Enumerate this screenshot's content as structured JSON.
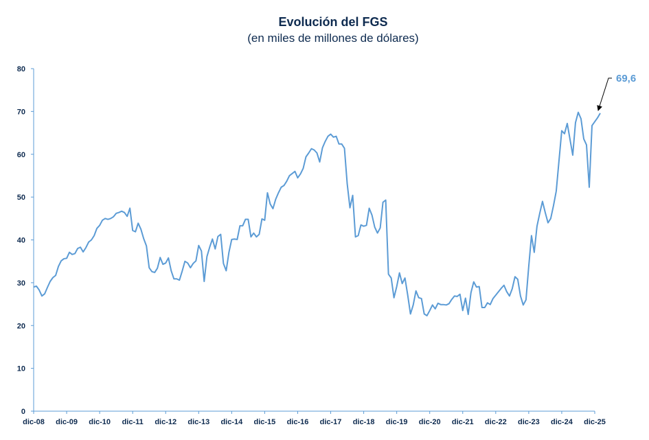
{
  "chart_data": {
    "type": "line",
    "title": "Evolución del FGS",
    "subtitle": "(en miles de millones de dólares)",
    "xlabel": "",
    "ylabel": "",
    "ylim": [
      0,
      80
    ],
    "yticks": [
      "0",
      "10",
      "20",
      "30",
      "40",
      "50",
      "60",
      "70",
      "80"
    ],
    "xticks": [
      "dic-08",
      "dic-09",
      "dic-10",
      "dic-11",
      "dic-12",
      "dic-13",
      "dic-14",
      "dic-15",
      "dic-16",
      "dic-17",
      "dic-18",
      "dic-19",
      "dic-20",
      "dic-21",
      "dic-22",
      "dic-23",
      "dic-24",
      "dic-25"
    ],
    "x_unit": "months since dic-08",
    "grid": false,
    "line_color": "#5b9bd5",
    "series": [
      {
        "values": [
          29.0,
          29.2,
          28.3,
          26.9,
          27.4,
          28.9,
          30.3,
          31.2,
          31.7,
          33.8,
          35.1,
          35.6,
          35.7,
          37.1,
          36.6,
          36.8,
          38.0,
          38.3,
          37.2,
          38.2,
          39.5,
          40.0,
          41.0,
          42.7,
          43.4,
          44.6,
          45.0,
          44.8,
          45.0,
          45.4,
          46.2,
          46.4,
          46.7,
          46.4,
          45.5,
          47.4,
          42.2,
          41.9,
          43.9,
          42.5,
          40.3,
          38.6,
          33.5,
          32.6,
          32.4,
          33.4,
          35.9,
          34.3,
          34.6,
          35.8,
          32.8,
          30.9,
          30.9,
          30.6,
          32.7,
          35.0,
          34.6,
          33.5,
          34.5,
          35.1,
          38.7,
          37.4,
          30.3,
          36.1,
          38.3,
          40.2,
          37.9,
          40.8,
          41.3,
          34.5,
          32.8,
          37.1,
          40.1,
          40.2,
          40.1,
          43.3,
          43.3,
          44.8,
          44.8,
          40.7,
          41.6,
          40.7,
          41.3,
          44.9,
          44.6,
          51.0,
          48.4,
          47.3,
          49.5,
          51.0,
          52.3,
          52.7,
          53.7,
          55.0,
          55.5,
          56.0,
          54.5,
          55.4,
          56.7,
          59.4,
          60.3,
          61.3,
          61.0,
          60.3,
          58.2,
          61.5,
          63.0,
          64.2,
          64.7,
          64.0,
          64.2,
          62.4,
          62.4,
          61.4,
          53.1,
          47.5,
          50.4,
          40.7,
          41.0,
          43.5,
          43.2,
          43.4,
          47.4,
          45.8,
          43.0,
          41.6,
          42.8,
          48.8,
          49.3,
          32.0,
          31.1,
          26.5,
          29.1,
          32.3,
          29.8,
          31.1,
          27.1,
          22.7,
          24.8,
          28.1,
          26.5,
          26.3,
          22.7,
          22.3,
          23.5,
          24.8,
          23.9,
          25.2,
          24.9,
          24.9,
          24.8,
          25.1,
          26.1,
          26.9,
          26.8,
          27.3,
          23.5,
          26.4,
          22.6,
          27.7,
          30.2,
          29.0,
          29.1,
          24.2,
          24.2,
          25.3,
          24.9,
          26.3,
          27.1,
          27.9,
          28.7,
          29.4,
          27.9,
          26.9,
          28.6,
          31.4,
          30.8,
          26.9,
          24.8,
          26.0,
          33.8,
          41.0,
          37.1,
          43.2,
          46.2,
          49.0,
          46.4,
          44.0,
          45.0,
          48.0,
          51.4,
          58.5,
          65.5,
          64.8,
          67.2,
          63.5,
          59.8,
          67.4,
          69.8,
          68.3,
          63.6,
          62.2,
          52.3,
          66.7,
          67.6,
          68.5,
          69.6
        ],
        "color": "#5b9bd5"
      }
    ],
    "annotations": [
      {
        "text": "69,6",
        "x": 205,
        "y": 69.6
      }
    ]
  }
}
